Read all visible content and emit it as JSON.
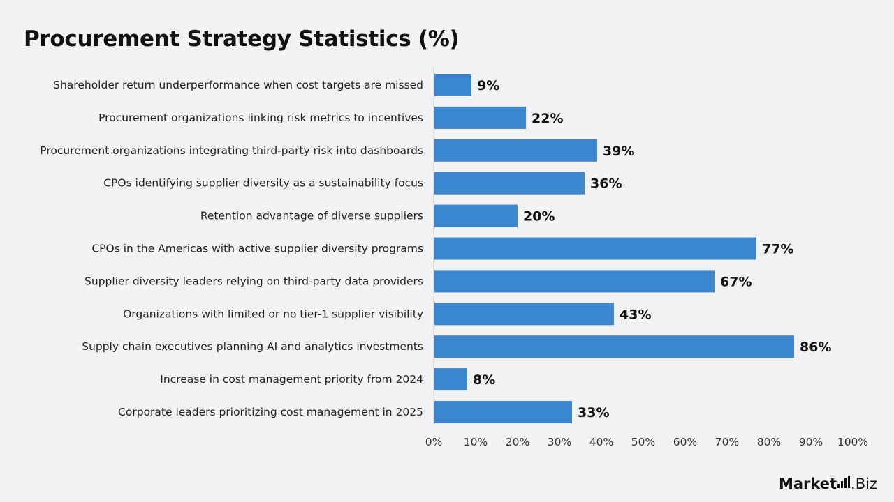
{
  "title": "Procurement Strategy Statistics (%)",
  "colors": {
    "bar": "#3a86cf",
    "background": "#f2f2f2",
    "axis": "#cfcfcf"
  },
  "logo": {
    "part1": "Market",
    "part2": ".Biz",
    "icon": "signal-bars-icon"
  },
  "chart_data": {
    "type": "bar",
    "orientation": "horizontal",
    "title": "Procurement Strategy Statistics (%)",
    "xlabel": "",
    "ylabel": "",
    "xlim": [
      0,
      100
    ],
    "xticks": [
      "0%",
      "10%",
      "20%",
      "30%",
      "40%",
      "50%",
      "60%",
      "70%",
      "80%",
      "90%",
      "100%"
    ],
    "grid": false,
    "categories": [
      "Shareholder return underperformance when cost targets are missed",
      "Procurement organizations linking risk metrics to incentives",
      "Procurement organizations integrating third-party risk into dashboards",
      "CPOs identifying supplier diversity as a sustainability focus",
      "Retention advantage of diverse suppliers",
      "CPOs in the Americas with active supplier diversity programs",
      "Supplier diversity leaders relying on third-party data providers",
      "Organizations with limited or no tier-1 supplier visibility",
      "Supply chain executives planning AI and analytics investments",
      "Increase in cost management priority from 2024",
      "Corporate leaders prioritizing cost management in 2025"
    ],
    "values": [
      9,
      22,
      39,
      36,
      20,
      77,
      67,
      43,
      86,
      8,
      33
    ],
    "value_labels": [
      "9%",
      "22%",
      "39%",
      "36%",
      "20%",
      "77%",
      "67%",
      "43%",
      "86%",
      "8%",
      "33%"
    ]
  }
}
